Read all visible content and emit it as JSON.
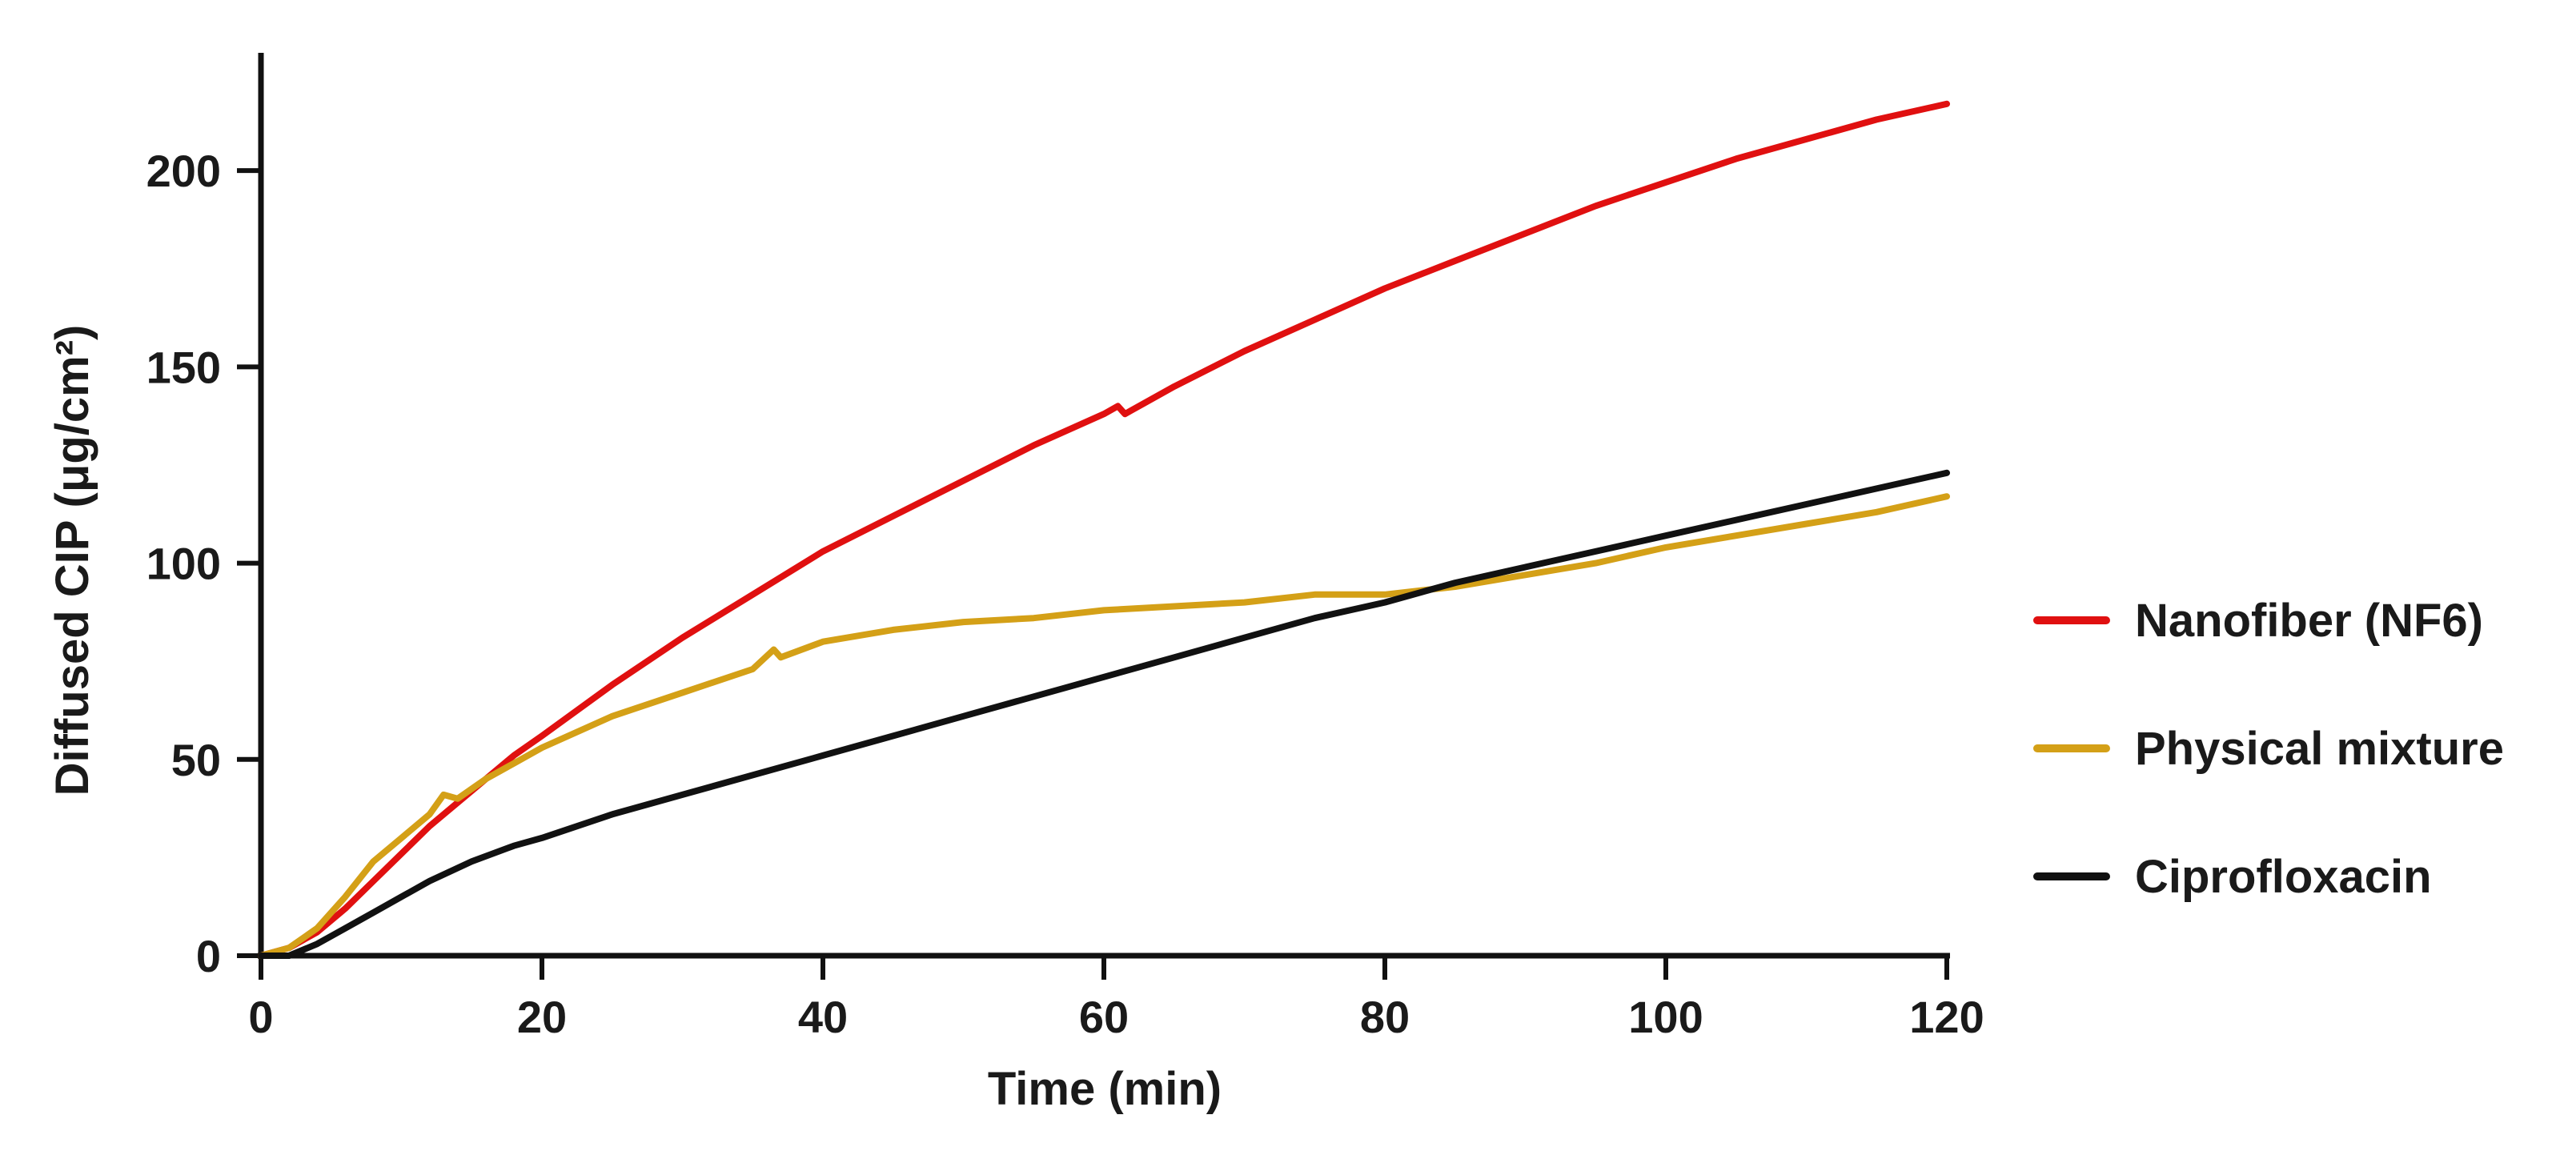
{
  "chart_data": {
    "type": "line",
    "title": "",
    "xlabel": "Time (min)",
    "ylabel": "Diffused CIP (μg/cm²)",
    "xlim": [
      0,
      120
    ],
    "ylim": [
      0,
      230
    ],
    "xticks": [
      0,
      20,
      40,
      60,
      80,
      100,
      120
    ],
    "yticks": [
      0,
      50,
      100,
      150,
      200
    ],
    "grid": false,
    "legend_position": "right",
    "series": [
      {
        "name": "Nanofiber (NF6)",
        "color": "#e01010",
        "x": [
          0,
          2,
          4,
          6,
          8,
          10,
          12,
          15,
          18,
          20,
          25,
          30,
          35,
          40,
          45,
          50,
          55,
          60,
          61,
          61.5,
          62,
          65,
          70,
          75,
          80,
          85,
          90,
          95,
          100,
          105,
          110,
          115,
          120
        ],
        "y": [
          0,
          2,
          6,
          12,
          19,
          26,
          33,
          42,
          51,
          56,
          69,
          81,
          92,
          103,
          112,
          121,
          130,
          138,
          140,
          138,
          139,
          145,
          154,
          162,
          170,
          177,
          184,
          191,
          197,
          203,
          208,
          213,
          217
        ]
      },
      {
        "name": "Physical mixture",
        "color": "#d4a017",
        "x": [
          0,
          2,
          4,
          6,
          8,
          10,
          12,
          13,
          14,
          16,
          18,
          20,
          25,
          30,
          35,
          36.5,
          37,
          40,
          45,
          50,
          55,
          60,
          65,
          70,
          75,
          80,
          85,
          90,
          95,
          100,
          105,
          110,
          115,
          120
        ],
        "y": [
          0,
          2,
          7,
          15,
          24,
          30,
          36,
          41,
          40,
          45,
          49,
          53,
          61,
          67,
          73,
          78,
          76,
          80,
          83,
          85,
          86,
          88,
          89,
          90,
          92,
          92,
          94,
          97,
          100,
          104,
          107,
          110,
          113,
          117
        ]
      },
      {
        "name": "Ciprofloxacin",
        "color": "#111111",
        "x": [
          0,
          2,
          4,
          6,
          8,
          10,
          12,
          15,
          18,
          20,
          25,
          30,
          35,
          40,
          45,
          50,
          55,
          60,
          65,
          70,
          75,
          80,
          85,
          90,
          95,
          100,
          105,
          110,
          115,
          120
        ],
        "y": [
          0,
          0,
          3,
          7,
          11,
          15,
          19,
          24,
          28,
          30,
          36,
          41,
          46,
          51,
          56,
          61,
          66,
          71,
          76,
          81,
          86,
          90,
          95,
          99,
          103,
          107,
          111,
          115,
          119,
          123
        ]
      }
    ]
  }
}
